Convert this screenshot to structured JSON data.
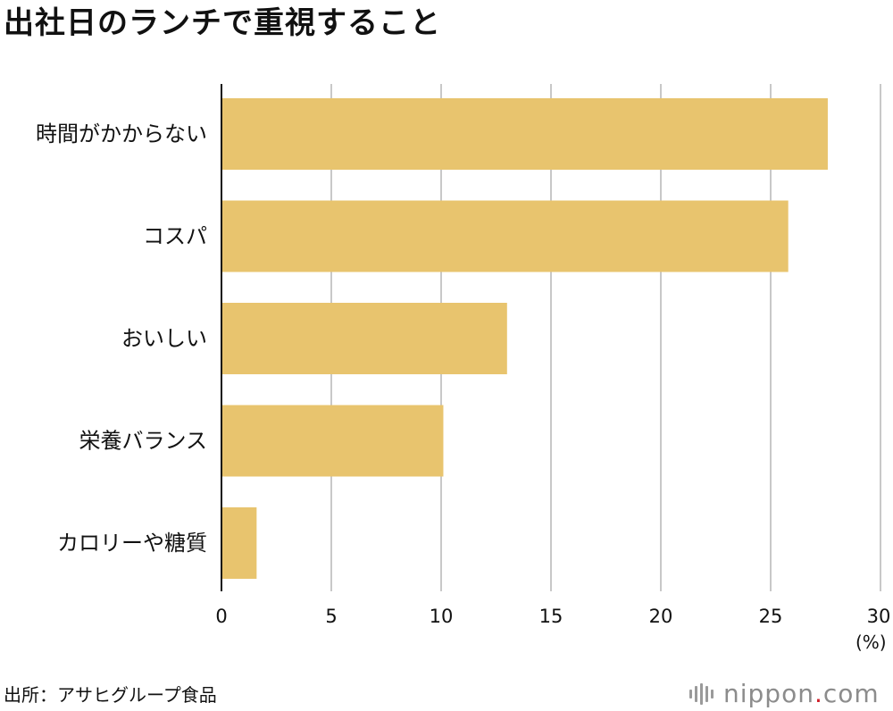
{
  "chart_data": {
    "type": "bar",
    "orientation": "horizontal",
    "title": "出社日のランチで重視すること",
    "categories": [
      "時間がかからない",
      "コスパ",
      "おいしい",
      "栄養バランス",
      "カロリーや糖質"
    ],
    "values": [
      27.6,
      25.8,
      13.0,
      10.1,
      1.6
    ],
    "xlim": [
      0,
      30
    ],
    "xticks": [
      0,
      5,
      10,
      15,
      20,
      25,
      30
    ],
    "xlabel": "(%)",
    "ylabel": "",
    "grid": true,
    "bar_color": "#e8c46e",
    "grid_color": "#c8c8c8"
  },
  "source": "出所：アサヒグループ食品",
  "logo": {
    "name": "nippon",
    "dot": ".",
    "suffix": "com",
    "accent_color": "#d0202a"
  }
}
